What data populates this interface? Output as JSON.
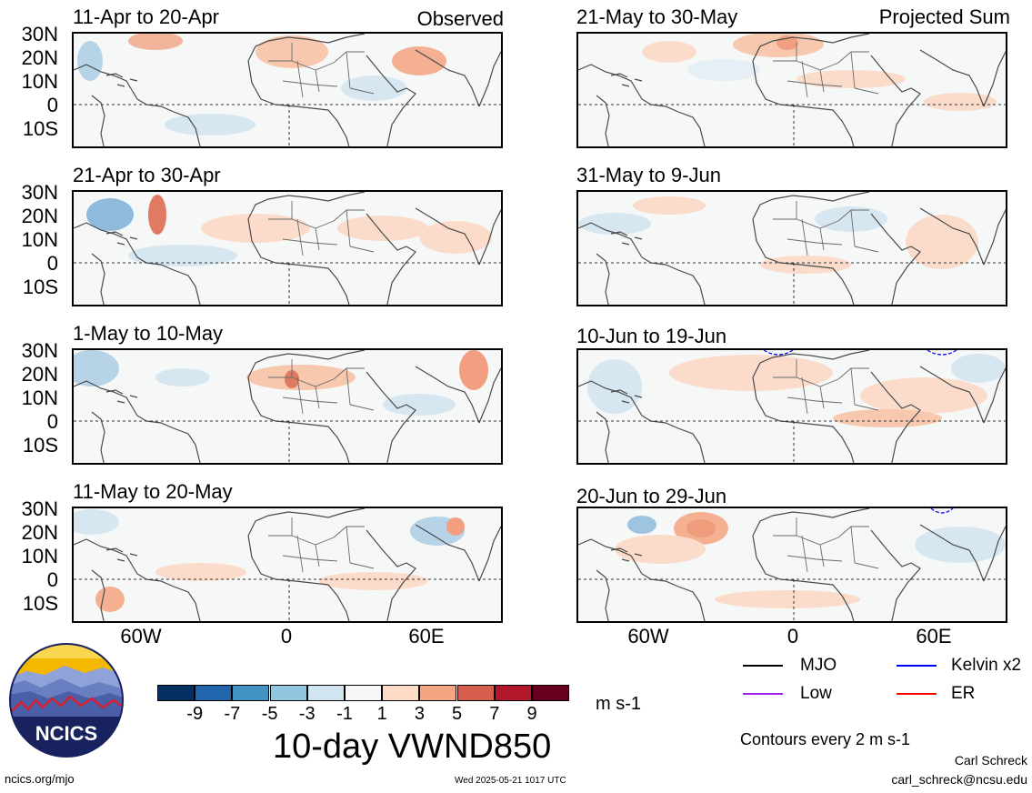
{
  "panels": [
    {
      "title": "11-Apr to 20-Apr",
      "tag": "Observed"
    },
    {
      "title": "21-Apr to 30-Apr",
      "tag": ""
    },
    {
      "title": "1-May to 10-May",
      "tag": ""
    },
    {
      "title": "11-May to 20-May",
      "tag": ""
    },
    {
      "title": "21-May to 30-May",
      "tag": "Projected Sum"
    },
    {
      "title": "31-May to 9-Jun",
      "tag": ""
    },
    {
      "title": "10-Jun to 19-Jun",
      "tag": ""
    },
    {
      "title": "20-Jun to 29-Jun",
      "tag": ""
    }
  ],
  "lat_labels": [
    "30N",
    "20N",
    "10N",
    "0",
    "10S"
  ],
  "lon_labels": [
    "60W",
    "0",
    "60E"
  ],
  "colorbar": {
    "colors": [
      "#053061",
      "#2166ac",
      "#4393c3",
      "#92c5de",
      "#d1e5f0",
      "#f7f7f7",
      "#fddbc7",
      "#f4a582",
      "#d6604d",
      "#b2182b",
      "#67001f"
    ],
    "labels": [
      "-9",
      "-7",
      "-5",
      "-3",
      "-1",
      "1",
      "3",
      "5",
      "7",
      "9"
    ],
    "units": "m s-1",
    "title": "10-day VWND850"
  },
  "legend": {
    "items": [
      {
        "label": "MJO",
        "color": "#000000"
      },
      {
        "label": "Kelvin x2",
        "color": "#0000ff"
      },
      {
        "label": "Low",
        "color": "#a020f0"
      },
      {
        "label": "ER",
        "color": "#ff0000"
      }
    ],
    "note": "Contours every 2 m s-1"
  },
  "logo": {
    "text": "NCICS"
  },
  "footer": {
    "url": "ncics.org/mjo",
    "timestamp": "Wed 2025-05-21 1017 UTC",
    "author": "Carl Schreck",
    "email": "carl_schreck@ncsu.edu"
  }
}
